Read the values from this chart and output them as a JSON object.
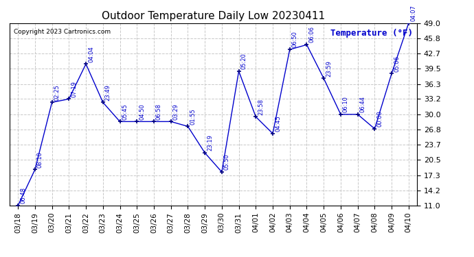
{
  "title": "Outdoor Temperature Daily Low 20230411",
  "copyright": "Copyright 2023 Cartronics.com",
  "ylabel": "Temperature (°F)",
  "background_color": "#ffffff",
  "plot_bg_color": "#ffffff",
  "grid_color": "#c8c8c8",
  "line_color": "#0000cc",
  "marker_color": "#000080",
  "text_color": "#0000cc",
  "dates": [
    "03/18",
    "03/19",
    "03/20",
    "03/21",
    "03/22",
    "03/23",
    "03/24",
    "03/25",
    "03/26",
    "03/27",
    "03/28",
    "03/29",
    "03/30",
    "03/31",
    "04/01",
    "04/02",
    "04/03",
    "04/04",
    "04/05",
    "04/06",
    "04/07",
    "04/08",
    "04/09",
    "04/10"
  ],
  "temperatures": [
    11.0,
    18.5,
    32.5,
    33.2,
    40.5,
    32.5,
    28.5,
    28.5,
    28.5,
    28.5,
    27.5,
    22.0,
    18.0,
    39.0,
    29.5,
    26.0,
    43.5,
    44.5,
    37.5,
    30.0,
    30.0,
    27.0,
    38.5,
    49.0
  ],
  "time_labels": [
    "06:48",
    "08:10",
    "02:25",
    "07:19",
    "04:04",
    "23:49",
    "05:45",
    "04:50",
    "06:58",
    "03:29",
    "01:55",
    "23:19",
    "05:50",
    "05:20",
    "23:58",
    "04:45",
    "06:50",
    "06:06",
    "23:59",
    "06:10",
    "06:44",
    "00:00",
    "05:06",
    "04:07"
  ],
  "ylim": [
    11.0,
    49.0
  ],
  "yticks": [
    11.0,
    14.2,
    17.3,
    20.5,
    23.7,
    26.8,
    30.0,
    33.2,
    36.3,
    39.5,
    42.7,
    45.8,
    49.0
  ]
}
